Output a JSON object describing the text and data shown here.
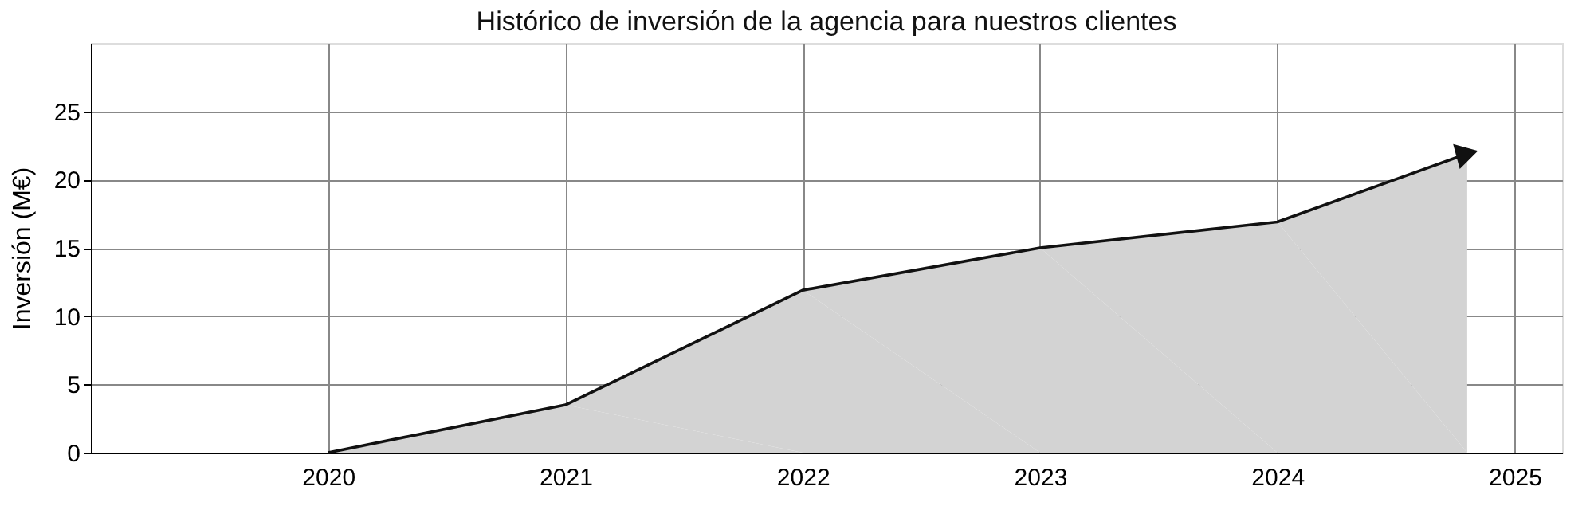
{
  "chart_data": {
    "type": "area",
    "title": "Histórico de inversión de la agencia para nuestros clientes",
    "ylabel": "Inversión  (M€)",
    "x": [
      2020,
      2021,
      2022,
      2023,
      2024,
      2024.8
    ],
    "series": [
      {
        "color": "#d3d3d3",
        "values": [
          0,
          3.5,
          11.9,
          15,
          16.9,
          21.9
        ]
      }
    ],
    "xlim": [
      2019,
      2025.2
    ],
    "xticks": [
      2020,
      2021,
      2022,
      2023,
      2024,
      2025
    ],
    "ylim": [
      0,
      30
    ],
    "yticks": [
      0,
      5,
      10,
      15,
      20,
      25
    ],
    "grid": true
  }
}
